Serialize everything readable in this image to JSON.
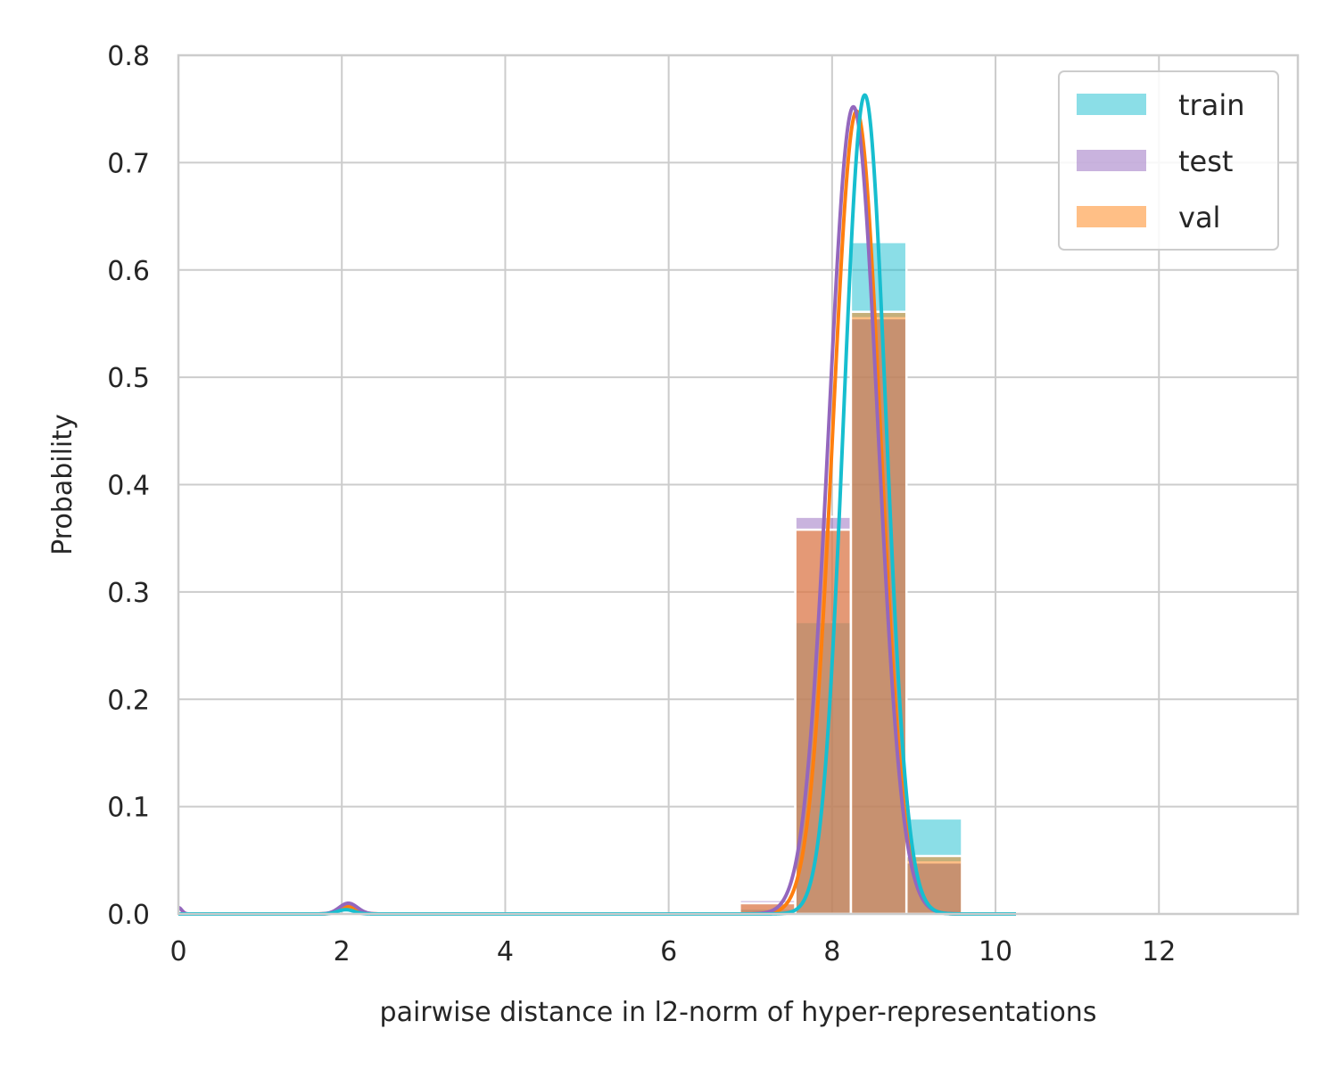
{
  "chart_data": {
    "type": "bar",
    "xlabel": "pairwise distance in l2-norm of hyper-representations",
    "ylabel": "Probability",
    "xlim": [
      0,
      13.7
    ],
    "ylim": [
      0,
      0.8
    ],
    "xticks": [
      "0",
      "2",
      "4",
      "6",
      "8",
      "10",
      "12"
    ],
    "yticks": [
      "0.0",
      "0.1",
      "0.2",
      "0.3",
      "0.4",
      "0.5",
      "0.6",
      "0.7",
      "0.8"
    ],
    "grid": true,
    "legend_position": "top-right",
    "bins": [
      {
        "x0": 6.87,
        "x1": 7.55
      },
      {
        "x0": 7.55,
        "x1": 8.23
      },
      {
        "x0": 8.23,
        "x1": 8.91
      },
      {
        "x0": 8.91,
        "x1": 9.59
      }
    ],
    "series": [
      {
        "name": "train",
        "color": "#17becf",
        "hist_values": [
          0.005,
          0.272,
          0.626,
          0.089
        ],
        "kde": {
          "mean": 8.4,
          "sd": 0.26,
          "peak": 0.763
        },
        "kde_secondary": {
          "mean": 2.05,
          "sd": 0.1,
          "peak": 0.004
        }
      },
      {
        "name": "test",
        "color": "#9467bd",
        "hist_values": [
          0.013,
          0.37,
          0.555,
          0.048
        ],
        "kde": {
          "mean": 8.26,
          "sd": 0.3,
          "peak": 0.752
        },
        "kde_secondary": {
          "mean": 2.08,
          "sd": 0.11,
          "peak": 0.01
        }
      },
      {
        "name": "val",
        "color": "#ff7f0e",
        "hist_values": [
          0.01,
          0.358,
          0.561,
          0.054
        ],
        "kde": {
          "mean": 8.3,
          "sd": 0.29,
          "peak": 0.748
        },
        "kde_secondary": {
          "mean": 2.08,
          "sd": 0.11,
          "peak": 0.007
        }
      }
    ]
  }
}
